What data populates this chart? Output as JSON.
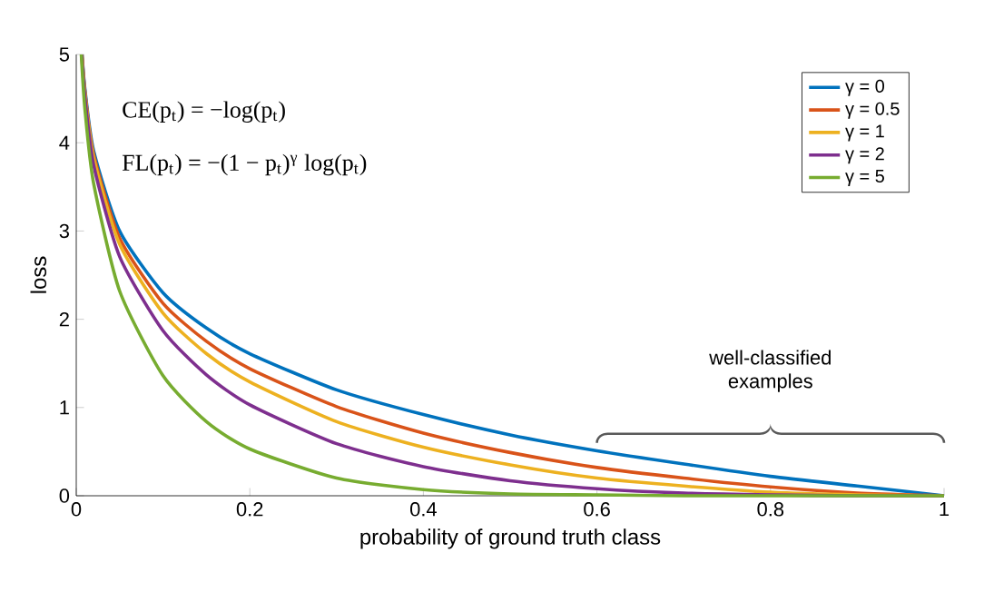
{
  "chart_data": {
    "type": "line",
    "xlabel": "probability of ground truth class",
    "ylabel": "loss",
    "xlim": [
      0,
      1
    ],
    "ylim": [
      0,
      5
    ],
    "xticks": [
      0,
      0.2,
      0.4,
      0.6,
      0.8,
      1
    ],
    "yticks": [
      0,
      1,
      2,
      3,
      4,
      5
    ],
    "grid": false,
    "legend": "top right",
    "marker": "none",
    "line_style": "solid",
    "annotations": [
      "CE(p$_{t}$) = −log(p$_{t}$)",
      "FL(p$_{t}$) = −(1 − p$_{t}$)$^{γ}$ log(p$_{t}$)",
      "well-classified examples"
    ],
    "series": [
      {
        "name": "γ = 0",
        "color": "#0072bd",
        "x": [
          0.0067,
          0.01,
          0.02,
          0.05,
          0.1,
          0.15,
          0.2,
          0.3,
          0.4,
          0.5,
          0.6,
          0.7,
          0.8,
          0.9,
          1
        ],
        "values": [
          5.0,
          4.61,
          3.91,
          3.0,
          2.3,
          1.9,
          1.61,
          1.2,
          0.92,
          0.69,
          0.51,
          0.36,
          0.22,
          0.11,
          0
        ]
      },
      {
        "name": "γ = 0.5",
        "color": "#d95319",
        "x": [
          0.0066,
          0.01,
          0.02,
          0.05,
          0.1,
          0.15,
          0.2,
          0.3,
          0.4,
          0.5,
          0.6,
          0.7,
          0.8,
          0.9,
          1
        ],
        "values": [
          5.0,
          4.58,
          3.87,
          2.92,
          2.18,
          1.75,
          1.44,
          1.01,
          0.71,
          0.49,
          0.32,
          0.2,
          0.1,
          0.03,
          0
        ]
      },
      {
        "name": "γ = 1",
        "color": "#edb120",
        "x": [
          0.0065,
          0.01,
          0.02,
          0.05,
          0.1,
          0.15,
          0.2,
          0.3,
          0.4,
          0.5,
          0.6,
          0.7,
          0.8,
          0.9,
          1
        ],
        "values": [
          5.0,
          4.56,
          3.83,
          2.85,
          2.07,
          1.61,
          1.29,
          0.84,
          0.55,
          0.35,
          0.2,
          0.11,
          0.04,
          0.01,
          0
        ]
      },
      {
        "name": "γ = 2",
        "color": "#7e2f8e",
        "x": [
          0.0063,
          0.01,
          0.02,
          0.05,
          0.1,
          0.15,
          0.2,
          0.3,
          0.4,
          0.5,
          0.6,
          0.7,
          0.8,
          0.9,
          1
        ],
        "values": [
          5.0,
          4.52,
          3.75,
          2.71,
          1.87,
          1.37,
          1.03,
          0.59,
          0.33,
          0.17,
          0.08,
          0.03,
          0.01,
          0,
          0
        ]
      },
      {
        "name": "γ = 5",
        "color": "#77ac30",
        "x": [
          0.0058,
          0.01,
          0.02,
          0.05,
          0.1,
          0.15,
          0.2,
          0.3,
          0.4,
          0.5,
          0.6,
          0.7,
          0.8,
          0.9,
          1
        ],
        "values": [
          5.0,
          4.38,
          3.54,
          2.32,
          1.36,
          0.84,
          0.53,
          0.2,
          0.07,
          0.02,
          0.01,
          0,
          0,
          0,
          0
        ]
      }
    ]
  }
}
